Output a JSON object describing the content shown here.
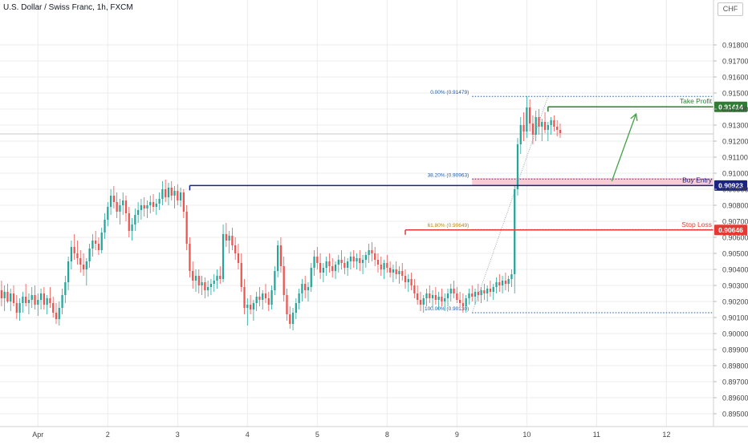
{
  "header": {
    "symbol_title": "U.S. Dollar / Swiss Franc, 1h, FXCM",
    "currency": "CHF"
  },
  "colors": {
    "bull": "#26a69a",
    "bear": "#ef5350",
    "take_profit": "#2e7d32",
    "buy_entry": "#1a237e",
    "stop_loss": "#e53935",
    "fib": "#1e5aa8",
    "fib_618": "#b8860b",
    "zone": "#f6c7cf",
    "arrow": "#43a047",
    "grid": "#ececec",
    "axis_text": "#444444"
  },
  "chart_data": {
    "type": "candlestick",
    "timeframe": "1h",
    "y_axis": {
      "min": 0.8948,
      "max": 0.9198,
      "ticks": [
        "0.91800",
        "0.91700",
        "0.91600",
        "0.91500",
        "0.91400",
        "0.91300",
        "0.91200",
        "0.91100",
        "0.91000",
        "0.90900",
        "0.90800",
        "0.90700",
        "0.90600",
        "0.90500",
        "0.90400",
        "0.90300",
        "0.90200",
        "0.90100",
        "0.90000",
        "0.89900",
        "0.89800",
        "0.89700",
        "0.89600",
        "0.89500"
      ]
    },
    "x_axis": {
      "ticks": [
        {
          "label": "Apr",
          "bar": 12
        },
        {
          "label": "2",
          "bar": 35
        },
        {
          "label": "3",
          "bar": 58
        },
        {
          "label": "4",
          "bar": 81
        },
        {
          "label": "5",
          "bar": 104
        },
        {
          "label": "8",
          "bar": 127
        },
        {
          "label": "9",
          "bar": 150
        },
        {
          "label": "10",
          "bar": 173
        },
        {
          "label": "11",
          "bar": 196
        },
        {
          "label": "12",
          "bar": 219
        }
      ],
      "total_slots": 235
    },
    "current_price": 0.91245,
    "levels": {
      "take_profit": {
        "label": "Take Profit",
        "value": "0.91414",
        "price": 0.91414
      },
      "buy_entry": {
        "label": "Buy Entry",
        "value": "0.90923",
        "price": 0.90923
      },
      "stop_loss": {
        "label": "Stop Loss",
        "value": "0.90646",
        "price": 0.90646
      }
    },
    "fibonacci": [
      {
        "label": "0.00% (0.91479)",
        "price": 0.91479
      },
      {
        "label": "38.20% (0.90963)",
        "price": 0.90963
      },
      {
        "label": "61.80% (0.90649)",
        "price": 0.90649
      },
      {
        "label": "100.00% (0.90130)",
        "price": 0.9013
      }
    ],
    "buy_zone": {
      "top": 0.9097,
      "bottom": 0.90923
    },
    "ohlc": [
      [
        0.9027,
        0.9033,
        0.9017,
        0.9022
      ],
      [
        0.9022,
        0.903,
        0.9014,
        0.9026
      ],
      [
        0.9026,
        0.9031,
        0.9019,
        0.902
      ],
      [
        0.902,
        0.9028,
        0.9014,
        0.9025
      ],
      [
        0.9025,
        0.903,
        0.9017,
        0.9019
      ],
      [
        0.9019,
        0.9024,
        0.9009,
        0.9013
      ],
      [
        0.9013,
        0.9022,
        0.9008,
        0.9019
      ],
      [
        0.9019,
        0.9026,
        0.9013,
        0.9023
      ],
      [
        0.9023,
        0.9031,
        0.9017,
        0.9019
      ],
      [
        0.9019,
        0.9025,
        0.9012,
        0.9021
      ],
      [
        0.9021,
        0.9029,
        0.9016,
        0.9024
      ],
      [
        0.9024,
        0.903,
        0.9015,
        0.9018
      ],
      [
        0.9018,
        0.9025,
        0.9011,
        0.9021
      ],
      [
        0.9021,
        0.9028,
        0.9015,
        0.9025
      ],
      [
        0.9025,
        0.9029,
        0.9015,
        0.9018
      ],
      [
        0.9018,
        0.9024,
        0.9012,
        0.9022
      ],
      [
        0.9022,
        0.9029,
        0.9016,
        0.9019
      ],
      [
        0.9019,
        0.9023,
        0.901,
        0.9013
      ],
      [
        0.9013,
        0.9019,
        0.9006,
        0.9009
      ],
      [
        0.9009,
        0.902,
        0.9005,
        0.9016
      ],
      [
        0.9016,
        0.9028,
        0.9012,
        0.9024
      ],
      [
        0.9024,
        0.9036,
        0.9019,
        0.9032
      ],
      [
        0.9032,
        0.9048,
        0.9027,
        0.9045
      ],
      [
        0.9045,
        0.9058,
        0.904,
        0.9054
      ],
      [
        0.9054,
        0.9062,
        0.9046,
        0.905
      ],
      [
        0.905,
        0.9058,
        0.9043,
        0.9047
      ],
      [
        0.9047,
        0.9052,
        0.9038,
        0.9043
      ],
      [
        0.9043,
        0.905,
        0.9036,
        0.904
      ],
      [
        0.904,
        0.9047,
        0.903,
        0.9045
      ],
      [
        0.9045,
        0.9056,
        0.9041,
        0.9053
      ],
      [
        0.9053,
        0.9062,
        0.9048,
        0.9058
      ],
      [
        0.9058,
        0.9064,
        0.9052,
        0.9056
      ],
      [
        0.9056,
        0.906,
        0.9049,
        0.9052
      ],
      [
        0.9052,
        0.9066,
        0.905,
        0.9063
      ],
      [
        0.9063,
        0.9075,
        0.9059,
        0.9071
      ],
      [
        0.9071,
        0.9082,
        0.9067,
        0.9079
      ],
      [
        0.9079,
        0.909,
        0.9074,
        0.9086
      ],
      [
        0.9086,
        0.9092,
        0.9078,
        0.9082
      ],
      [
        0.9082,
        0.9088,
        0.9072,
        0.9076
      ],
      [
        0.9076,
        0.9084,
        0.9068,
        0.908
      ],
      [
        0.908,
        0.9088,
        0.9074,
        0.9083
      ],
      [
        0.9083,
        0.9086,
        0.907,
        0.9075
      ],
      [
        0.9075,
        0.9079,
        0.906,
        0.9064
      ],
      [
        0.9064,
        0.9072,
        0.9058,
        0.9068
      ],
      [
        0.9068,
        0.9078,
        0.9064,
        0.9074
      ],
      [
        0.9074,
        0.9082,
        0.9069,
        0.9077
      ],
      [
        0.9077,
        0.9084,
        0.9071,
        0.908
      ],
      [
        0.908,
        0.9085,
        0.9073,
        0.9078
      ],
      [
        0.9078,
        0.9083,
        0.9072,
        0.908
      ],
      [
        0.908,
        0.9086,
        0.9075,
        0.9082
      ],
      [
        0.9082,
        0.9087,
        0.9076,
        0.9079
      ],
      [
        0.9079,
        0.9084,
        0.9074,
        0.9081
      ],
      [
        0.9081,
        0.9088,
        0.9077,
        0.9084
      ],
      [
        0.9084,
        0.9095,
        0.908,
        0.909
      ],
      [
        0.909,
        0.9096,
        0.9082,
        0.9085
      ],
      [
        0.9085,
        0.9094,
        0.908,
        0.9091
      ],
      [
        0.9091,
        0.9095,
        0.9083,
        0.9086
      ],
      [
        0.9086,
        0.9092,
        0.9078,
        0.9089
      ],
      [
        0.9089,
        0.9093,
        0.908,
        0.9083
      ],
      [
        0.9083,
        0.9091,
        0.9079,
        0.9088
      ],
      [
        0.9088,
        0.909,
        0.9072,
        0.9076
      ],
      [
        0.9076,
        0.908,
        0.9052,
        0.9056
      ],
      [
        0.9056,
        0.906,
        0.9035,
        0.9039
      ],
      [
        0.9039,
        0.9045,
        0.9028,
        0.9033
      ],
      [
        0.9033,
        0.904,
        0.9026,
        0.9036
      ],
      [
        0.9036,
        0.904,
        0.9025,
        0.903
      ],
      [
        0.903,
        0.9036,
        0.9024,
        0.9032
      ],
      [
        0.9032,
        0.9035,
        0.9022,
        0.9027
      ],
      [
        0.9027,
        0.9033,
        0.9023,
        0.9029
      ],
      [
        0.9029,
        0.9034,
        0.9024,
        0.9031
      ],
      [
        0.9031,
        0.9037,
        0.9026,
        0.9033
      ],
      [
        0.9033,
        0.904,
        0.9028,
        0.9036
      ],
      [
        0.9036,
        0.9042,
        0.9031,
        0.9034
      ],
      [
        0.9034,
        0.9068,
        0.9032,
        0.9062
      ],
      [
        0.9062,
        0.9069,
        0.9054,
        0.9058
      ],
      [
        0.9058,
        0.9064,
        0.905,
        0.9061
      ],
      [
        0.9061,
        0.9066,
        0.9052,
        0.9055
      ],
      [
        0.9055,
        0.906,
        0.9046,
        0.905
      ],
      [
        0.905,
        0.9056,
        0.904,
        0.9044
      ],
      [
        0.9044,
        0.905,
        0.9026,
        0.9029
      ],
      [
        0.9029,
        0.9034,
        0.9012,
        0.9016
      ],
      [
        0.9016,
        0.9022,
        0.9005,
        0.9018
      ],
      [
        0.9018,
        0.9024,
        0.9012,
        0.9015
      ],
      [
        0.9015,
        0.9021,
        0.9008,
        0.9019
      ],
      [
        0.9019,
        0.9026,
        0.9014,
        0.9023
      ],
      [
        0.9023,
        0.9029,
        0.9017,
        0.9021
      ],
      [
        0.9021,
        0.9027,
        0.9015,
        0.9025
      ],
      [
        0.9025,
        0.9031,
        0.9019,
        0.9022
      ],
      [
        0.9022,
        0.9026,
        0.9014,
        0.9018
      ],
      [
        0.9018,
        0.903,
        0.9015,
        0.9027
      ],
      [
        0.9027,
        0.9042,
        0.9024,
        0.9039
      ],
      [
        0.9039,
        0.9058,
        0.9035,
        0.9055
      ],
      [
        0.9055,
        0.906,
        0.9038,
        0.9042
      ],
      [
        0.9042,
        0.9048,
        0.902,
        0.9024
      ],
      [
        0.9024,
        0.9028,
        0.9008,
        0.9012
      ],
      [
        0.9012,
        0.9017,
        0.9003,
        0.9006
      ],
      [
        0.9006,
        0.9016,
        0.9002,
        0.9013
      ],
      [
        0.9013,
        0.9022,
        0.9009,
        0.9019
      ],
      [
        0.9019,
        0.9028,
        0.9015,
        0.9025
      ],
      [
        0.9025,
        0.9034,
        0.902,
        0.9031
      ],
      [
        0.9031,
        0.9036,
        0.9022,
        0.9027
      ],
      [
        0.9027,
        0.9032,
        0.902,
        0.9029
      ],
      [
        0.9029,
        0.9044,
        0.9026,
        0.9041
      ],
      [
        0.9041,
        0.9052,
        0.9036,
        0.9048
      ],
      [
        0.9048,
        0.9054,
        0.904,
        0.9044
      ],
      [
        0.9044,
        0.905,
        0.9034,
        0.9038
      ],
      [
        0.9038,
        0.9044,
        0.9032,
        0.9041
      ],
      [
        0.9041,
        0.9048,
        0.9036,
        0.9045
      ],
      [
        0.9045,
        0.905,
        0.9038,
        0.9042
      ],
      [
        0.9042,
        0.9047,
        0.9035,
        0.9039
      ],
      [
        0.9039,
        0.9045,
        0.9034,
        0.9043
      ],
      [
        0.9043,
        0.9049,
        0.9038,
        0.9046
      ],
      [
        0.9046,
        0.9052,
        0.904,
        0.9044
      ],
      [
        0.9044,
        0.9048,
        0.9037,
        0.9041
      ],
      [
        0.9041,
        0.9047,
        0.9036,
        0.9045
      ],
      [
        0.9045,
        0.9051,
        0.904,
        0.9048
      ],
      [
        0.9048,
        0.9052,
        0.9041,
        0.9045
      ],
      [
        0.9045,
        0.905,
        0.904,
        0.9047
      ],
      [
        0.9047,
        0.9052,
        0.9039,
        0.9044
      ],
      [
        0.9044,
        0.9049,
        0.9037,
        0.9046
      ],
      [
        0.9046,
        0.9051,
        0.9041,
        0.9049
      ],
      [
        0.9049,
        0.9056,
        0.9044,
        0.9052
      ],
      [
        0.9052,
        0.9057,
        0.9045,
        0.905
      ],
      [
        0.905,
        0.9054,
        0.9042,
        0.9046
      ],
      [
        0.9046,
        0.905,
        0.9038,
        0.9043
      ],
      [
        0.9043,
        0.9048,
        0.9036,
        0.904
      ],
      [
        0.904,
        0.9046,
        0.9034,
        0.9044
      ],
      [
        0.9044,
        0.9049,
        0.9038,
        0.9041
      ],
      [
        0.9041,
        0.9045,
        0.9035,
        0.9038
      ],
      [
        0.9038,
        0.9043,
        0.9032,
        0.904
      ],
      [
        0.904,
        0.9045,
        0.9034,
        0.9037
      ],
      [
        0.9037,
        0.9042,
        0.9031,
        0.9039
      ],
      [
        0.9039,
        0.9044,
        0.9033,
        0.9036
      ],
      [
        0.9036,
        0.904,
        0.9028,
        0.9032
      ],
      [
        0.9032,
        0.9037,
        0.9026,
        0.9034
      ],
      [
        0.9034,
        0.9038,
        0.9027,
        0.903
      ],
      [
        0.903,
        0.9034,
        0.9022,
        0.9025
      ],
      [
        0.9025,
        0.903,
        0.9018,
        0.9021
      ],
      [
        0.9021,
        0.9026,
        0.9014,
        0.9018
      ],
      [
        0.9018,
        0.9024,
        0.9013,
        0.9022
      ],
      [
        0.9022,
        0.9028,
        0.9017,
        0.9025
      ],
      [
        0.9025,
        0.903,
        0.9019,
        0.9022
      ],
      [
        0.9022,
        0.9027,
        0.9016,
        0.9024
      ],
      [
        0.9024,
        0.9029,
        0.9018,
        0.9021
      ],
      [
        0.9021,
        0.9026,
        0.9015,
        0.9023
      ],
      [
        0.9023,
        0.9028,
        0.9017,
        0.902
      ],
      [
        0.902,
        0.9025,
        0.9014,
        0.9022
      ],
      [
        0.9022,
        0.9028,
        0.9017,
        0.9025
      ],
      [
        0.9025,
        0.9031,
        0.902,
        0.9028
      ],
      [
        0.9028,
        0.9033,
        0.9022,
        0.9025
      ],
      [
        0.9025,
        0.9029,
        0.9019,
        0.9021
      ],
      [
        0.9021,
        0.9026,
        0.9015,
        0.9019
      ],
      [
        0.9019,
        0.9025,
        0.9013,
        0.9017
      ],
      [
        0.9017,
        0.9024,
        0.9013,
        0.9022
      ],
      [
        0.9022,
        0.9028,
        0.9018,
        0.9025
      ],
      [
        0.9025,
        0.903,
        0.902,
        0.9023
      ],
      [
        0.9023,
        0.9028,
        0.9018,
        0.9026
      ],
      [
        0.9026,
        0.9031,
        0.902,
        0.9024
      ],
      [
        0.9024,
        0.9029,
        0.9019,
        0.9027
      ],
      [
        0.9027,
        0.9031,
        0.9021,
        0.9025
      ],
      [
        0.9025,
        0.903,
        0.902,
        0.9028
      ],
      [
        0.9028,
        0.9033,
        0.9023,
        0.9026
      ],
      [
        0.9026,
        0.9031,
        0.9021,
        0.9029
      ],
      [
        0.9029,
        0.9035,
        0.9025,
        0.9032
      ],
      [
        0.9032,
        0.9037,
        0.9026,
        0.903
      ],
      [
        0.903,
        0.9036,
        0.9025,
        0.9033
      ],
      [
        0.9033,
        0.9038,
        0.9027,
        0.9031
      ],
      [
        0.9031,
        0.9036,
        0.9026,
        0.9034
      ],
      [
        0.9034,
        0.904,
        0.9029,
        0.9037
      ],
      [
        0.9037,
        0.9092,
        0.9025,
        0.909
      ],
      [
        0.909,
        0.9122,
        0.9086,
        0.9118
      ],
      [
        0.9118,
        0.9135,
        0.9112,
        0.913
      ],
      [
        0.913,
        0.9138,
        0.912,
        0.9126
      ],
      [
        0.9126,
        0.9148,
        0.9122,
        0.9141
      ],
      [
        0.9141,
        0.9146,
        0.9126,
        0.9131
      ],
      [
        0.9131,
        0.9136,
        0.9118,
        0.9124
      ],
      [
        0.9124,
        0.9139,
        0.912,
        0.9135
      ],
      [
        0.9135,
        0.914,
        0.9124,
        0.9129
      ],
      [
        0.9129,
        0.9134,
        0.912,
        0.9132
      ],
      [
        0.9132,
        0.9138,
        0.9125,
        0.9127
      ],
      [
        0.9127,
        0.9132,
        0.912,
        0.913
      ],
      [
        0.913,
        0.9135,
        0.9124,
        0.9133
      ],
      [
        0.9133,
        0.9136,
        0.9126,
        0.9129
      ],
      [
        0.9129,
        0.9133,
        0.9123,
        0.9127
      ],
      [
        0.9127,
        0.9131,
        0.9122,
        0.9125
      ]
    ]
  }
}
